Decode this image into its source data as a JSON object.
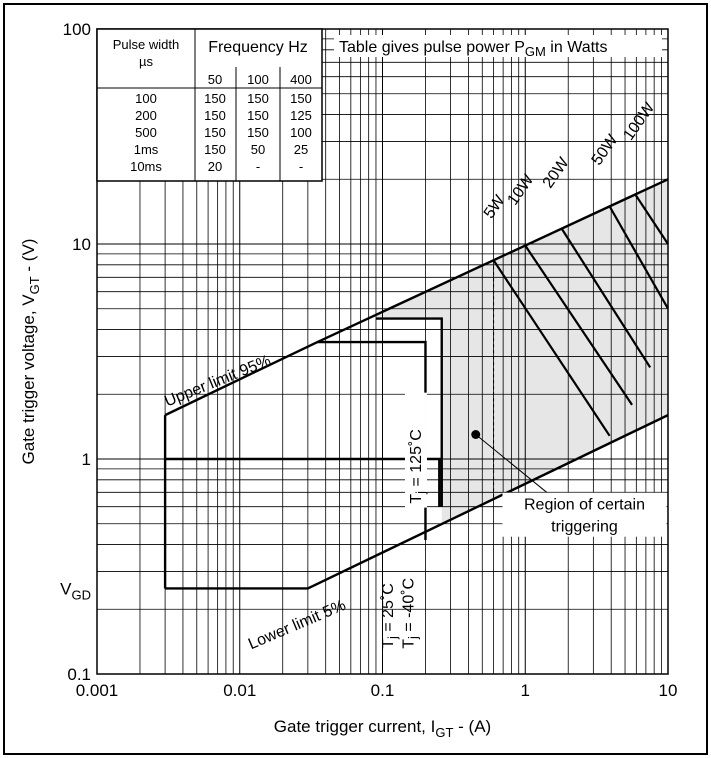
{
  "chart_data": {
    "type": "line",
    "xscale": "log",
    "yscale": "log",
    "xlim": [
      0.001,
      10
    ],
    "ylim": [
      0.1,
      100
    ],
    "grid": true,
    "xlabel": {
      "main": "Gate trigger current, I",
      "sub": "GT",
      "tail": " - (A)"
    },
    "ylabel": {
      "main": "Gate trigger voltage, V",
      "sub": "GT",
      "tail": " - (V)"
    },
    "xticks": [
      {
        "v": 0.001,
        "label": "0.001"
      },
      {
        "v": 0.01,
        "label": "0.01"
      },
      {
        "v": 0.1,
        "label": "0.1"
      },
      {
        "v": 1,
        "label": "1"
      },
      {
        "v": 10,
        "label": "10"
      }
    ],
    "yticks": [
      {
        "v": 0.1,
        "label": "0.1"
      },
      {
        "v": 1,
        "label": "1"
      },
      {
        "v": 10,
        "label": "10"
      },
      {
        "v": 100,
        "label": "100"
      }
    ],
    "vgd": {
      "v": 0.25,
      "main": "V",
      "sub": "GD"
    },
    "series": [
      {
        "id": "upper-limit",
        "label": "Upper limit 95%",
        "points": [
          [
            0.003,
            1.6
          ],
          [
            0.035,
            3.5
          ],
          [
            10,
            20
          ]
        ]
      },
      {
        "id": "lower-limit",
        "label": "Lower limit 5%",
        "points": [
          [
            0.003,
            0.25
          ],
          [
            0.03,
            0.25
          ],
          [
            10,
            1.6
          ]
        ]
      },
      {
        "id": "tj-125",
        "points": [
          [
            0.003,
            1.0
          ],
          [
            0.25,
            1.0
          ],
          [
            0.25,
            0.6
          ]
        ]
      },
      {
        "id": "tj-25",
        "points": [
          [
            0.035,
            3.5
          ],
          [
            0.2,
            3.5
          ],
          [
            0.2,
            0.42
          ]
        ]
      },
      {
        "id": "tj-minus40",
        "points": [
          [
            0.09,
            4.5
          ],
          [
            0.26,
            4.5
          ],
          [
            0.26,
            0.6
          ]
        ]
      }
    ],
    "power_lines": [
      {
        "label": "5W",
        "watts": 5,
        "i_top": 0.6,
        "i_bottom": 3.9,
        "label_at": [
          0.58,
          13
        ]
      },
      {
        "label": "10W",
        "watts": 10,
        "i_top": 1.0,
        "i_bottom": 5.6,
        "label_at": [
          0.85,
          15
        ]
      },
      {
        "label": "20W",
        "watts": 20,
        "i_top": 1.8,
        "i_bottom": 7.5,
        "label_at": [
          1.5,
          18
        ]
      },
      {
        "label": "50W",
        "watts": 50,
        "i_top": 3.9,
        "i_bottom": 10,
        "label_at": [
          3.3,
          23
        ]
      },
      {
        "label": "100W",
        "watts": 100,
        "i_top": 5.9,
        "i_bottom": 10,
        "label_at": [
          5.5,
          30
        ]
      }
    ],
    "temperature_labels": [
      {
        "id": "tj-125",
        "main": "T",
        "sub": "j",
        "tail": " = 125˚C",
        "at": [
          0.18,
          0.5
        ]
      },
      {
        "id": "tj-25",
        "main": "T",
        "sub": "j",
        "tail": " = 25˚C",
        "at": [
          0.12,
          0.13
        ]
      },
      {
        "id": "tj-minus40",
        "main": "T",
        "sub": "j",
        "tail": " = -40˚C",
        "at": [
          0.175,
          0.13
        ]
      }
    ],
    "region": {
      "label_line1": "Region of certain",
      "label_line2": "triggering",
      "dot": [
        0.45,
        1.3
      ]
    },
    "pulse_table": {
      "title_main": "Table gives pulse power P",
      "title_sub": "GM",
      "title_tail": " in Watts",
      "col1_line1": "Pulse width",
      "col1_line2": "µs",
      "freq_header": "Frequency Hz",
      "freqs": [
        "50",
        "100",
        "400"
      ],
      "rows": [
        [
          "100",
          "150",
          "150",
          "150"
        ],
        [
          "200",
          "150",
          "150",
          "125"
        ],
        [
          "500",
          "150",
          "150",
          "100"
        ],
        [
          "1ms",
          "150",
          "50",
          "25"
        ],
        [
          "10ms",
          "20",
          "-",
          "-"
        ]
      ]
    }
  }
}
